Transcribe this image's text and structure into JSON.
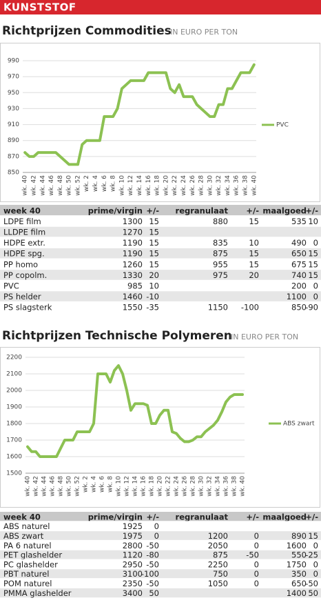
{
  "header": "KUNSTSTOF",
  "sections": [
    {
      "title": "Richtprijzen Commodities",
      "subtitle": "IN EURO PER TON"
    },
    {
      "title": "Richtprijzen Technische Polymeren",
      "subtitle": "IN EURO PER TON"
    }
  ],
  "chart_data": [
    {
      "type": "line",
      "categories": [
        "wk. 40",
        null,
        "wk. 42",
        null,
        "wk. 44",
        null,
        "wk. 46",
        null,
        "wk. 48",
        null,
        "wk. 50",
        null,
        "wk. 52",
        null,
        "wk. 2",
        null,
        "wk. 4",
        null,
        "wk. 6",
        null,
        "wk. 8",
        null,
        "wk. 10",
        null,
        "wk. 12",
        null,
        "wk. 14",
        null,
        "wk. 16",
        null,
        "wk. 18",
        null,
        "wk. 20",
        null,
        "wk. 22",
        null,
        "wk. 24",
        null,
        "wk. 26",
        null,
        "wk. 28",
        null,
        "wk. 30",
        null,
        "wk. 32",
        null,
        "wk. 34",
        null,
        "wk. 36",
        null,
        "wk. 38",
        null,
        "wk. 40"
      ],
      "series": [
        {
          "name": "PVC",
          "color": "#8cc152",
          "values": [
            875,
            870,
            870,
            875,
            875,
            875,
            875,
            875,
            870,
            865,
            860,
            860,
            860,
            885,
            890,
            890,
            890,
            890,
            920,
            920,
            920,
            930,
            955,
            960,
            965,
            965,
            965,
            965,
            975,
            975,
            975,
            975,
            975,
            955,
            950,
            960,
            945,
            945,
            945,
            935,
            930,
            925,
            920,
            920,
            935,
            935,
            955,
            955,
            965,
            975,
            975,
            975,
            985
          ]
        }
      ],
      "ylim": [
        850,
        990
      ],
      "yticks": [
        850,
        870,
        890,
        910,
        930,
        950,
        970,
        990
      ],
      "grid": true,
      "legend": "right"
    },
    {
      "type": "line",
      "categories": [
        "wk. 40",
        null,
        "wk. 42",
        null,
        "wk. 44",
        null,
        "wk. 46",
        null,
        "wk. 48",
        null,
        "wk. 50",
        null,
        "wk. 52",
        null,
        "wk. 2",
        null,
        "wk. 4",
        null,
        "wk. 6",
        null,
        "wk. 8",
        null,
        "wk. 10",
        null,
        "wk. 12",
        null,
        "wk. 14",
        null,
        "wk. 16",
        null,
        "wk. 18",
        null,
        "wk. 20",
        null,
        "wk. 22",
        null,
        "wk. 24",
        null,
        "wk. 26",
        null,
        "wk. 28",
        null,
        "wk. 30",
        null,
        "wk. 32",
        null,
        "wk. 34",
        null,
        "wk. 36",
        null,
        "wk. 38",
        null,
        "wk. 40"
      ],
      "series": [
        {
          "name": "ABS zwart",
          "color": "#8cc152",
          "values": [
            1660,
            1630,
            1630,
            1600,
            1600,
            1600,
            1600,
            1600,
            1650,
            1700,
            1700,
            1700,
            1750,
            1750,
            1750,
            1750,
            1800,
            2100,
            2100,
            2100,
            2050,
            2120,
            2150,
            2100,
            2000,
            1880,
            1920,
            1920,
            1920,
            1910,
            1800,
            1800,
            1850,
            1880,
            1880,
            1750,
            1740,
            1710,
            1690,
            1690,
            1700,
            1720,
            1720,
            1750,
            1770,
            1790,
            1820,
            1870,
            1930,
            1960,
            1975,
            1975,
            1975
          ]
        }
      ],
      "ylim": [
        1500,
        2200
      ],
      "yticks": [
        1500,
        1600,
        1700,
        1800,
        1900,
        2000,
        2100,
        2200
      ],
      "grid": true,
      "legend": "right"
    }
  ],
  "tables": [
    {
      "columns": [
        "week 40",
        "prime/virgin",
        "+/-",
        "regranulaat",
        "+/-",
        "maalgoed",
        "+/-"
      ],
      "rows": [
        [
          "LDPE film",
          1300,
          15,
          880,
          15,
          535,
          10
        ],
        [
          "LLDPE film",
          1270,
          15,
          null,
          null,
          null,
          null
        ],
        [
          "HDPE extr.",
          1190,
          15,
          835,
          10,
          490,
          0
        ],
        [
          "HDPE spg.",
          1190,
          15,
          875,
          15,
          650,
          15
        ],
        [
          "PP homo",
          1260,
          15,
          955,
          15,
          675,
          15
        ],
        [
          "PP copolm.",
          1330,
          20,
          975,
          20,
          740,
          15
        ],
        [
          "PVC",
          985,
          10,
          null,
          null,
          200,
          0
        ],
        [
          "PS helder",
          1460,
          -10,
          null,
          null,
          1100,
          0
        ],
        [
          "PS slagsterk",
          1550,
          -35,
          1150,
          -100,
          850,
          -90
        ]
      ]
    },
    {
      "columns": [
        "week 40",
        "prime/virgin",
        "+/-",
        "regranulaat",
        "+/-",
        "maalgoed",
        "+/-"
      ],
      "rows": [
        [
          "ABS naturel",
          1925,
          0,
          null,
          null,
          null,
          null
        ],
        [
          "ABS zwart",
          1975,
          0,
          1200,
          0,
          890,
          15
        ],
        [
          "PA 6 naturel",
          2800,
          -50,
          2050,
          0,
          1600,
          0
        ],
        [
          "PET glashelder",
          1120,
          -80,
          875,
          -50,
          550,
          -25
        ],
        [
          "PC glashelder",
          2950,
          -50,
          2250,
          0,
          1750,
          0
        ],
        [
          "PBT naturel",
          3100,
          -100,
          750,
          0,
          350,
          0
        ],
        [
          "POM naturel",
          2350,
          -50,
          1050,
          0,
          650,
          -50
        ],
        [
          "PMMA glashelder",
          3400,
          50,
          null,
          null,
          1400,
          50
        ]
      ]
    }
  ]
}
